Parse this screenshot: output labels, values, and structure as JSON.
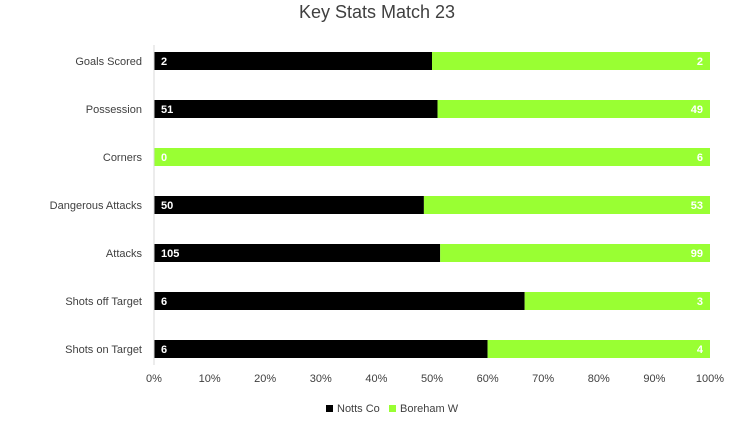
{
  "chart_data": {
    "type": "bar",
    "orientation": "horizontal",
    "stacking": "percent",
    "title": "Key Stats Match 23",
    "categories": [
      "Goals Scored",
      "Possession",
      "Corners",
      "Dangerous Attacks",
      "Attacks",
      "Shots off Target",
      "Shots on Target"
    ],
    "series": [
      {
        "name": "Notts Co",
        "color": "#000000",
        "values": [
          2,
          51,
          0,
          50,
          105,
          6,
          6
        ]
      },
      {
        "name": "Boreham W",
        "color": "#99ff33",
        "values": [
          2,
          49,
          6,
          53,
          99,
          3,
          4
        ]
      }
    ],
    "xlim": [
      0,
      100
    ],
    "x_ticks": [
      "0%",
      "10%",
      "20%",
      "30%",
      "40%",
      "50%",
      "60%",
      "70%",
      "80%",
      "90%",
      "100%"
    ],
    "legend": "bottom",
    "grid": false
  }
}
